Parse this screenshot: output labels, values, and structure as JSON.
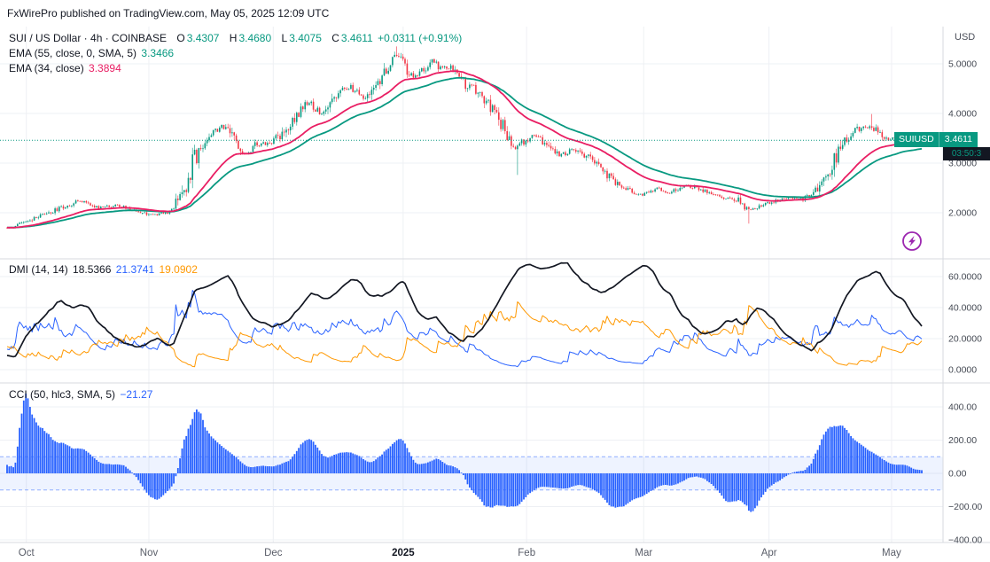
{
  "attribution": "FxWirePro published on TradingView.com, May 05, 2025 12:09 UTC",
  "colors": {
    "up": "#089981",
    "down": "#f23645",
    "ema55": "#089981",
    "ema34": "#e91e63",
    "adx": "#131722",
    "plus_di": "#2962ff",
    "minus_di": "#ff9800",
    "cci": "#2962ff",
    "badge": "#089981",
    "icon": "#9c27b0",
    "grid": "#eef0f4",
    "separator": "#d7dadf"
  },
  "main_chart": {
    "legend": {
      "symbol": "SUI / US Dollar · 4h · COINBASE",
      "o_label": "O",
      "open": "3.4307",
      "h_label": "H",
      "high": "3.4680",
      "l_label": "L",
      "low": "3.4075",
      "c_label": "C",
      "close": "3.4611",
      "change": "+0.0311 (+0.91%)"
    },
    "ema55": {
      "label": "EMA (55, close, 0, SMA, 5)",
      "value": "3.3466"
    },
    "ema34": {
      "label": "EMA (34, close)",
      "value": "3.3894"
    },
    "axis_currency": "USD",
    "price_label": {
      "symbol": "SUIUSD",
      "price": "3.4611",
      "countdown": "03:50:3"
    }
  },
  "dmi": {
    "label": "DMI (14, 14)",
    "adx": "18.5366",
    "plus_di": "21.3741",
    "minus_di": "19.0902"
  },
  "cci": {
    "label": "CCI (50, hlc3, SMA, 5)",
    "value": "−21.27"
  },
  "x_axis": {
    "labels": [
      {
        "text": "Oct",
        "f": 0.021
      },
      {
        "text": "Nov",
        "f": 0.155
      },
      {
        "text": "Dec",
        "f": 0.291
      },
      {
        "text": "2025",
        "f": 0.433,
        "bold": true
      },
      {
        "text": "Feb",
        "f": 0.568
      },
      {
        "text": "Mar",
        "f": 0.696
      },
      {
        "text": "Apr",
        "f": 0.833
      },
      {
        "text": "May",
        "f": 0.967
      }
    ]
  },
  "chart_data": [
    {
      "type": "candlestick",
      "title": "SUI / US Dollar · 4h · COINBASE",
      "symbol": "SUIUSD",
      "timeframe": "4h",
      "exchange": "COINBASE",
      "ohlc_last": {
        "open": 3.4307,
        "high": 3.468,
        "low": 3.4075,
        "close": 3.4611
      },
      "change_abs": 0.0311,
      "change_pct": 0.91,
      "last_price": 3.4611,
      "overlays": [
        {
          "name": "EMA 55",
          "last": 3.3466
        },
        {
          "name": "EMA 34",
          "last": 3.3894
        }
      ],
      "yticks": [
        {
          "v": 2,
          "label": "2.0000"
        },
        {
          "v": 3,
          "label": "3.0000"
        },
        {
          "v": 4,
          "label": "4.0000"
        },
        {
          "v": 5,
          "label": "5.0000"
        }
      ],
      "ylim": [
        1.1,
        5.75
      ],
      "x_range": [
        "Oct 2024",
        "May 2025"
      ],
      "price_path": [
        [
          0.0,
          1.7
        ],
        [
          0.02,
          1.8
        ],
        [
          0.04,
          1.95
        ],
        [
          0.06,
          2.1
        ],
        [
          0.08,
          2.25
        ],
        [
          0.1,
          2.1
        ],
        [
          0.12,
          2.15
        ],
        [
          0.14,
          2.05
        ],
        [
          0.16,
          1.95
        ],
        [
          0.175,
          2.0
        ],
        [
          0.19,
          2.3
        ],
        [
          0.205,
          3.1
        ],
        [
          0.22,
          3.55
        ],
        [
          0.235,
          3.75
        ],
        [
          0.25,
          3.45
        ],
        [
          0.26,
          3.15
        ],
        [
          0.27,
          3.35
        ],
        [
          0.285,
          3.4
        ],
        [
          0.3,
          3.55
        ],
        [
          0.315,
          3.95
        ],
        [
          0.33,
          4.25
        ],
        [
          0.345,
          3.95
        ],
        [
          0.36,
          4.35
        ],
        [
          0.375,
          4.55
        ],
        [
          0.39,
          4.3
        ],
        [
          0.4,
          4.55
        ],
        [
          0.415,
          4.85
        ],
        [
          0.425,
          5.2
        ],
        [
          0.435,
          4.95
        ],
        [
          0.445,
          4.7
        ],
        [
          0.455,
          4.85
        ],
        [
          0.465,
          5.05
        ],
        [
          0.475,
          4.9
        ],
        [
          0.485,
          4.95
        ],
        [
          0.5,
          4.6
        ],
        [
          0.515,
          4.45
        ],
        [
          0.53,
          4.1
        ],
        [
          0.545,
          3.65
        ],
        [
          0.555,
          3.3
        ],
        [
          0.565,
          3.45
        ],
        [
          0.575,
          3.55
        ],
        [
          0.59,
          3.4
        ],
        [
          0.605,
          3.15
        ],
        [
          0.62,
          3.3
        ],
        [
          0.635,
          3.1
        ],
        [
          0.65,
          2.85
        ],
        [
          0.665,
          2.6
        ],
        [
          0.68,
          2.45
        ],
        [
          0.695,
          2.35
        ],
        [
          0.71,
          2.5
        ],
        [
          0.725,
          2.4
        ],
        [
          0.74,
          2.55
        ],
        [
          0.755,
          2.5
        ],
        [
          0.77,
          2.35
        ],
        [
          0.785,
          2.3
        ],
        [
          0.8,
          2.25
        ],
        [
          0.81,
          2.05
        ],
        [
          0.825,
          2.15
        ],
        [
          0.84,
          2.25
        ],
        [
          0.855,
          2.3
        ],
        [
          0.87,
          2.28
        ],
        [
          0.885,
          2.45
        ],
        [
          0.9,
          2.9
        ],
        [
          0.915,
          3.45
        ],
        [
          0.93,
          3.7
        ],
        [
          0.945,
          3.75
        ],
        [
          0.955,
          3.55
        ],
        [
          0.965,
          3.45
        ],
        [
          0.975,
          3.55
        ],
        [
          0.985,
          3.4
        ],
        [
          1.0,
          3.4611
        ]
      ],
      "wick_events": [
        {
          "f": 0.425,
          "high": 5.35
        },
        {
          "f": 0.558,
          "low": 2.76
        },
        {
          "f": 0.81,
          "low": 1.78
        },
        {
          "f": 0.945,
          "high": 3.99
        }
      ]
    },
    {
      "type": "line",
      "title": "DMI (14, 14)",
      "period": 14,
      "adx_smoothing": 14,
      "series": [
        {
          "name": "ADX",
          "last": 18.5366
        },
        {
          "name": "+DI",
          "last": 21.3741
        },
        {
          "name": "-DI",
          "last": 19.0902
        }
      ],
      "yticks": [
        {
          "v": 0,
          "label": "0.0000"
        },
        {
          "v": 20,
          "label": "20.0000"
        },
        {
          "v": 40,
          "label": "40.0000"
        },
        {
          "v": 60,
          "label": "60.0000"
        }
      ],
      "ylim": [
        -8,
        70
      ]
    },
    {
      "type": "bar",
      "title": "CCI (50, hlc3, SMA, 5)",
      "period": 50,
      "source": "hlc3",
      "smoothing": {
        "type": "SMA",
        "length": 5
      },
      "last": -21.27,
      "band": [
        -100,
        100
      ],
      "yticks": [
        {
          "v": 400,
          "label": "400.00"
        },
        {
          "v": 200,
          "label": "200.00"
        },
        {
          "v": 0,
          "label": "0.00"
        },
        {
          "v": -200,
          "label": "−200.00"
        },
        {
          "v": -400,
          "label": "−400.00"
        }
      ],
      "ylim": [
        -430,
        540
      ]
    }
  ]
}
